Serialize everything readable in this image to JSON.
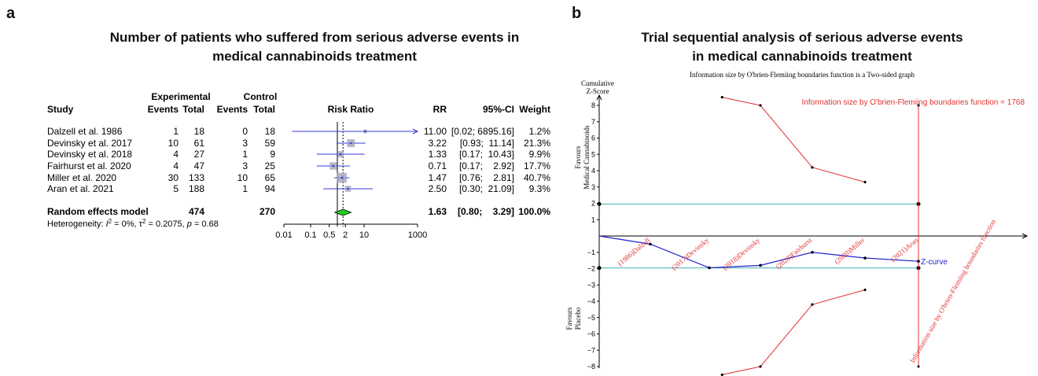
{
  "panel_a": {
    "letter": "a",
    "title_line1": "Number of patients who suffered from serious adverse events in",
    "title_line2": "medical cannabinoids treatment",
    "hdr": {
      "experimental": "Experimental",
      "control": "Control",
      "study": "Study",
      "events": "Events",
      "total": "Total",
      "events2": "Events",
      "total2": "Total",
      "risk_ratio": "Risk Ratio",
      "rr": "RR",
      "ci": "95%-CI",
      "weight": "Weight"
    },
    "rows": [
      {
        "study": "Dalzell et al. 1986",
        "ee": "1",
        "et": "18",
        "ce": "0",
        "ct": "18",
        "rr": "11.00",
        "ci": "[0.02; 6895.16]",
        "w": "1.2%"
      },
      {
        "study": "Devinsky et al. 2017",
        "ee": "10",
        "et": "61",
        "ce": "3",
        "ct": "59",
        "rr": "3.22",
        "ci": "[0.93;  11.14]",
        "w": "21.3%"
      },
      {
        "study": "Devinsky et al. 2018",
        "ee": "4",
        "et": "27",
        "ce": "1",
        "ct": "9",
        "rr": "1.33",
        "ci": "[0.17;  10.43]",
        "w": "9.9%"
      },
      {
        "study": "Fairhurst et al. 2020",
        "ee": "4",
        "et": "47",
        "ce": "3",
        "ct": "25",
        "rr": "0.71",
        "ci": "[0.17;    2.92]",
        "w": "17.7%"
      },
      {
        "study": "Miller et al. 2020",
        "ee": "30",
        "et": "133",
        "ce": "10",
        "ct": "65",
        "rr": "1.47",
        "ci": "[0.76;    2.81]",
        "w": "40.7%"
      },
      {
        "study": "Aran et al. 2021",
        "ee": "5",
        "et": "188",
        "ce": "1",
        "ct": "94",
        "rr": "2.50",
        "ci": "[0.30;  21.09]",
        "w": "9.3%"
      }
    ],
    "pooled": {
      "label": "Random effects model",
      "et": "474",
      "ct": "270",
      "rr": "1.63",
      "ci": "[0.80;    3.29]",
      "w": "100.0%"
    },
    "heterogeneity": {
      "prefix": "Heterogeneity: ",
      "i2": "I",
      "i2_val": " = 0%, ",
      "tau": "τ",
      "tau_val": " = 0.2075, ",
      "p": "p",
      "p_val": " = 0.68"
    }
  },
  "panel_b": {
    "letter": "b",
    "title_line1": "Trial sequential analysis of serious adverse events",
    "title_line2": "in medical cannabinoids treatment",
    "subtitle": "Information size by O'brien-Flemiing boundaries function is a Two-sided graph",
    "ylabel_line1": "Cumulative",
    "ylabel_line2": "Z-Score",
    "favours_top_1": "Favours",
    "favours_top_2": "Medical Cannabinoids",
    "favours_bottom_1": "Favours",
    "favours_bottom_2": "Placebo",
    "info_size_label": "Information size by O'brien-Flemiing boundaries function = 1768",
    "info_size_vertical": "Information size by O'brien-Flemiing boundaries function",
    "zcurve_label": "Z-curve"
  },
  "chart_data": [
    {
      "type": "forest",
      "scale": "log",
      "xticks": [
        0.01,
        0.1,
        0.5,
        2,
        10,
        1000
      ],
      "xtick_labels": [
        "0.01",
        "0.1",
        "0.5",
        "2",
        "10",
        "1000"
      ],
      "studies": [
        {
          "name": "Dalzell et al. 1986",
          "rr": 11.0,
          "lo": 0.02,
          "hi": 6895.16,
          "weight": 1.2,
          "arrow": true
        },
        {
          "name": "Devinsky et al. 2017",
          "rr": 3.22,
          "lo": 0.93,
          "hi": 11.14,
          "weight": 21.3
        },
        {
          "name": "Devinsky et al. 2018",
          "rr": 1.33,
          "lo": 0.17,
          "hi": 10.43,
          "weight": 9.9
        },
        {
          "name": "Fairhurst et al. 2020",
          "rr": 0.71,
          "lo": 0.17,
          "hi": 2.92,
          "weight": 17.7
        },
        {
          "name": "Miller et al. 2020",
          "rr": 1.47,
          "lo": 0.76,
          "hi": 2.81,
          "weight": 40.7
        },
        {
          "name": "Aran et al. 2021",
          "rr": 2.5,
          "lo": 0.3,
          "hi": 21.09,
          "weight": 9.3
        }
      ],
      "pooled": {
        "rr": 1.63,
        "lo": 0.8,
        "hi": 3.29
      },
      "colors": {
        "ci": "#3b3bd6",
        "box": "#9aa0b8",
        "diamond": "#22cc22"
      }
    },
    {
      "type": "line",
      "ylim": [
        -8,
        8
      ],
      "yticks": [
        8,
        7,
        6,
        5,
        4,
        3,
        2,
        1,
        -1,
        -2,
        -3,
        -4,
        -5,
        -6,
        -7,
        -8
      ],
      "ytick_labels": [
        "8",
        "7",
        "6",
        "5",
        "4",
        "3",
        "2",
        "1",
        "−1",
        "−2",
        "−3",
        "−4",
        "−5",
        "−6",
        "−7",
        "−8"
      ],
      "x_labels": [
        "(1986)Dalzell",
        "(2017)Devinsky",
        "(2018)Devinsky",
        "(2020)Fairhurst",
        "(2020)Miller",
        "(2021)Aran"
      ],
      "x": [
        0,
        1,
        2,
        3,
        4,
        5,
        6
      ],
      "z_curve": [
        0,
        -0.5,
        -1.95,
        -1.8,
        -1.0,
        -1.35,
        -1.55
      ],
      "upper_boundary": {
        "x": [
          2.25,
          3,
          4,
          5
        ],
        "y": [
          8.5,
          8.0,
          4.2,
          3.3
        ]
      },
      "lower_boundary": {
        "x": [
          2.25,
          3,
          4,
          5
        ],
        "y": [
          -8.5,
          -8.0,
          -4.2,
          -3.3
        ]
      },
      "conventional_boundaries": [
        1.96,
        -1.96
      ],
      "information_size_x": 6.0,
      "colors": {
        "z_curve": "#2222cc",
        "boundary": "#e03030",
        "conventional": "#40b0b0",
        "info_size": "#e03030"
      }
    }
  ]
}
